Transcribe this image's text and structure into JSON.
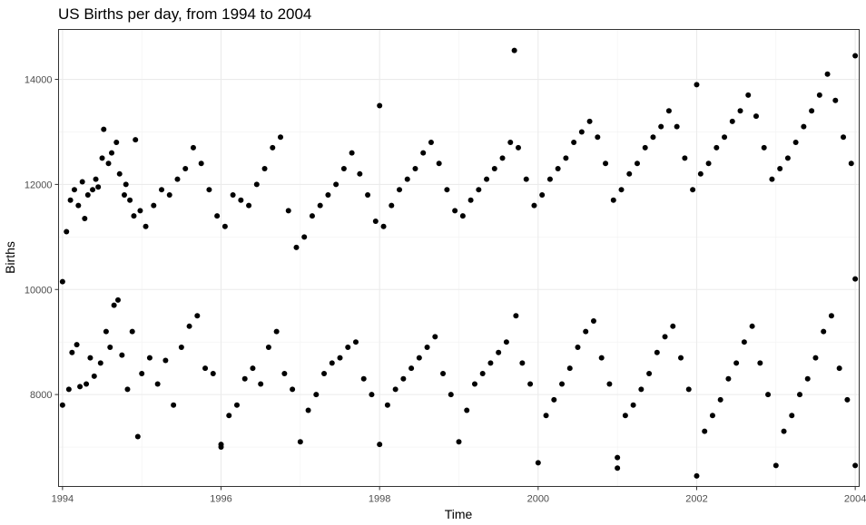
{
  "chart_data": {
    "type": "scatter",
    "title": "US Births per day, from 1994 to 2004",
    "xlabel": "Time",
    "ylabel": "Births",
    "xlim": [
      1993.95,
      2004.05
    ],
    "ylim": [
      6250,
      14950
    ],
    "x_ticks": [
      1994,
      1996,
      1998,
      2000,
      2002,
      2004
    ],
    "x_tick_labels": [
      "1994",
      "1996",
      "1998",
      "2000",
      "2002",
      "2004"
    ],
    "y_ticks": [
      8000,
      10000,
      12000,
      14000
    ],
    "y_tick_labels": [
      "8000",
      "10000",
      "12000",
      "14000"
    ],
    "grid": true,
    "point_color": "#000000",
    "series": [
      {
        "name": "",
        "points": [
          [
            1994.0,
            10150
          ],
          [
            1994.0,
            7800
          ],
          [
            1994.05,
            11100
          ],
          [
            1994.08,
            8100
          ],
          [
            1994.1,
            11700
          ],
          [
            1994.12,
            8800
          ],
          [
            1994.15,
            11900
          ],
          [
            1994.18,
            8950
          ],
          [
            1994.2,
            11600
          ],
          [
            1994.22,
            8150
          ],
          [
            1994.25,
            12050
          ],
          [
            1994.28,
            11350
          ],
          [
            1994.3,
            8200
          ],
          [
            1994.32,
            11800
          ],
          [
            1994.35,
            8700
          ],
          [
            1994.38,
            11900
          ],
          [
            1994.4,
            8350
          ],
          [
            1994.42,
            12100
          ],
          [
            1994.45,
            11950
          ],
          [
            1994.48,
            8600
          ],
          [
            1994.5,
            12500
          ],
          [
            1994.52,
            13050
          ],
          [
            1994.55,
            9200
          ],
          [
            1994.58,
            12400
          ],
          [
            1994.6,
            8900
          ],
          [
            1994.62,
            12600
          ],
          [
            1994.65,
            9700
          ],
          [
            1994.68,
            12800
          ],
          [
            1994.7,
            9800
          ],
          [
            1994.72,
            12200
          ],
          [
            1994.75,
            8750
          ],
          [
            1994.78,
            11800
          ],
          [
            1994.8,
            12000
          ],
          [
            1994.82,
            8100
          ],
          [
            1994.85,
            11700
          ],
          [
            1994.88,
            9200
          ],
          [
            1994.9,
            11400
          ],
          [
            1994.92,
            12850
          ],
          [
            1994.95,
            7200
          ],
          [
            1994.98,
            11500
          ],
          [
            1995.0,
            8400
          ],
          [
            1995.05,
            11200
          ],
          [
            1995.1,
            8700
          ],
          [
            1995.15,
            11600
          ],
          [
            1995.2,
            8200
          ],
          [
            1995.25,
            11900
          ],
          [
            1995.3,
            8650
          ],
          [
            1995.35,
            11800
          ],
          [
            1995.4,
            7800
          ],
          [
            1995.45,
            12100
          ],
          [
            1995.5,
            8900
          ],
          [
            1995.55,
            12300
          ],
          [
            1995.6,
            9300
          ],
          [
            1995.65,
            12700
          ],
          [
            1995.7,
            9500
          ],
          [
            1995.75,
            12400
          ],
          [
            1995.8,
            8500
          ],
          [
            1995.85,
            11900
          ],
          [
            1995.9,
            8400
          ],
          [
            1995.95,
            11400
          ],
          [
            1996.0,
            7050
          ],
          [
            1996.0,
            7000
          ],
          [
            1996.05,
            11200
          ],
          [
            1996.1,
            7600
          ],
          [
            1996.15,
            11800
          ],
          [
            1996.2,
            7800
          ],
          [
            1996.25,
            11700
          ],
          [
            1996.3,
            8300
          ],
          [
            1996.35,
            11600
          ],
          [
            1996.4,
            8500
          ],
          [
            1996.45,
            12000
          ],
          [
            1996.5,
            8200
          ],
          [
            1996.55,
            12300
          ],
          [
            1996.6,
            8900
          ],
          [
            1996.65,
            12700
          ],
          [
            1996.7,
            9200
          ],
          [
            1996.75,
            12900
          ],
          [
            1996.8,
            8400
          ],
          [
            1996.85,
            11500
          ],
          [
            1996.9,
            8100
          ],
          [
            1996.95,
            10800
          ],
          [
            1997.0,
            7100
          ],
          [
            1997.05,
            11000
          ],
          [
            1997.1,
            7700
          ],
          [
            1997.15,
            11400
          ],
          [
            1997.2,
            8000
          ],
          [
            1997.25,
            11600
          ],
          [
            1997.3,
            8400
          ],
          [
            1997.35,
            11800
          ],
          [
            1997.4,
            8600
          ],
          [
            1997.45,
            12000
          ],
          [
            1997.5,
            8700
          ],
          [
            1997.55,
            12300
          ],
          [
            1997.6,
            8900
          ],
          [
            1997.65,
            12600
          ],
          [
            1997.7,
            9000
          ],
          [
            1997.75,
            12200
          ],
          [
            1997.8,
            8300
          ],
          [
            1997.85,
            11800
          ],
          [
            1997.9,
            8000
          ],
          [
            1997.95,
            11300
          ],
          [
            1998.0,
            13500
          ],
          [
            1998.0,
            7050
          ],
          [
            1998.05,
            11200
          ],
          [
            1998.1,
            7800
          ],
          [
            1998.15,
            11600
          ],
          [
            1998.2,
            8100
          ],
          [
            1998.25,
            11900
          ],
          [
            1998.3,
            8300
          ],
          [
            1998.35,
            12100
          ],
          [
            1998.4,
            8500
          ],
          [
            1998.45,
            12300
          ],
          [
            1998.5,
            8700
          ],
          [
            1998.55,
            12600
          ],
          [
            1998.6,
            8900
          ],
          [
            1998.65,
            12800
          ],
          [
            1998.7,
            9100
          ],
          [
            1998.75,
            12400
          ],
          [
            1998.8,
            8400
          ],
          [
            1998.85,
            11900
          ],
          [
            1998.9,
            8000
          ],
          [
            1998.95,
            11500
          ],
          [
            1999.0,
            7100
          ],
          [
            1999.05,
            11400
          ],
          [
            1999.1,
            7700
          ],
          [
            1999.15,
            11700
          ],
          [
            1999.2,
            8200
          ],
          [
            1999.25,
            11900
          ],
          [
            1999.3,
            8400
          ],
          [
            1999.35,
            12100
          ],
          [
            1999.4,
            8600
          ],
          [
            1999.45,
            12300
          ],
          [
            1999.5,
            8800
          ],
          [
            1999.55,
            12500
          ],
          [
            1999.6,
            9000
          ],
          [
            1999.65,
            12800
          ],
          [
            1999.7,
            14550
          ],
          [
            1999.72,
            9500
          ],
          [
            1999.75,
            12700
          ],
          [
            1999.8,
            8600
          ],
          [
            1999.85,
            12100
          ],
          [
            1999.9,
            8200
          ],
          [
            1999.95,
            11600
          ],
          [
            2000.0,
            6700
          ],
          [
            2000.05,
            11800
          ],
          [
            2000.1,
            7600
          ],
          [
            2000.15,
            12100
          ],
          [
            2000.2,
            7900
          ],
          [
            2000.25,
            12300
          ],
          [
            2000.3,
            8200
          ],
          [
            2000.35,
            12500
          ],
          [
            2000.4,
            8500
          ],
          [
            2000.45,
            12800
          ],
          [
            2000.5,
            8900
          ],
          [
            2000.55,
            13000
          ],
          [
            2000.6,
            9200
          ],
          [
            2000.65,
            13200
          ],
          [
            2000.7,
            9400
          ],
          [
            2000.75,
            12900
          ],
          [
            2000.8,
            8700
          ],
          [
            2000.85,
            12400
          ],
          [
            2000.9,
            8200
          ],
          [
            2000.95,
            11700
          ],
          [
            2001.0,
            6800
          ],
          [
            2001.0,
            6600
          ],
          [
            2001.05,
            11900
          ],
          [
            2001.1,
            7600
          ],
          [
            2001.15,
            12200
          ],
          [
            2001.2,
            7800
          ],
          [
            2001.25,
            12400
          ],
          [
            2001.3,
            8100
          ],
          [
            2001.35,
            12700
          ],
          [
            2001.4,
            8400
          ],
          [
            2001.45,
            12900
          ],
          [
            2001.5,
            8800
          ],
          [
            2001.55,
            13100
          ],
          [
            2001.6,
            9100
          ],
          [
            2001.65,
            13400
          ],
          [
            2001.7,
            9300
          ],
          [
            2001.75,
            13100
          ],
          [
            2001.8,
            8700
          ],
          [
            2001.85,
            12500
          ],
          [
            2001.9,
            8100
          ],
          [
            2001.95,
            11900
          ],
          [
            2002.0,
            6450
          ],
          [
            2002.0,
            13900
          ],
          [
            2002.05,
            12200
          ],
          [
            2002.1,
            7300
          ],
          [
            2002.15,
            12400
          ],
          [
            2002.2,
            7600
          ],
          [
            2002.25,
            12700
          ],
          [
            2002.3,
            7900
          ],
          [
            2002.35,
            12900
          ],
          [
            2002.4,
            8300
          ],
          [
            2002.45,
            13200
          ],
          [
            2002.5,
            8600
          ],
          [
            2002.55,
            13400
          ],
          [
            2002.6,
            9000
          ],
          [
            2002.65,
            13700
          ],
          [
            2002.7,
            9300
          ],
          [
            2002.75,
            13300
          ],
          [
            2002.8,
            8600
          ],
          [
            2002.85,
            12700
          ],
          [
            2002.9,
            8000
          ],
          [
            2002.95,
            12100
          ],
          [
            2003.0,
            6650
          ],
          [
            2003.05,
            12300
          ],
          [
            2003.1,
            7300
          ],
          [
            2003.15,
            12500
          ],
          [
            2003.2,
            7600
          ],
          [
            2003.25,
            12800
          ],
          [
            2003.3,
            8000
          ],
          [
            2003.35,
            13100
          ],
          [
            2003.4,
            8300
          ],
          [
            2003.45,
            13400
          ],
          [
            2003.5,
            8700
          ],
          [
            2003.55,
            13700
          ],
          [
            2003.6,
            9200
          ],
          [
            2003.65,
            14100
          ],
          [
            2003.7,
            9500
          ],
          [
            2003.75,
            13600
          ],
          [
            2003.8,
            8500
          ],
          [
            2003.85,
            12900
          ],
          [
            2003.9,
            7900
          ],
          [
            2003.95,
            12400
          ],
          [
            2004.0,
            14450
          ],
          [
            2004.0,
            6650
          ],
          [
            2004.0,
            10200
          ]
        ]
      }
    ]
  }
}
